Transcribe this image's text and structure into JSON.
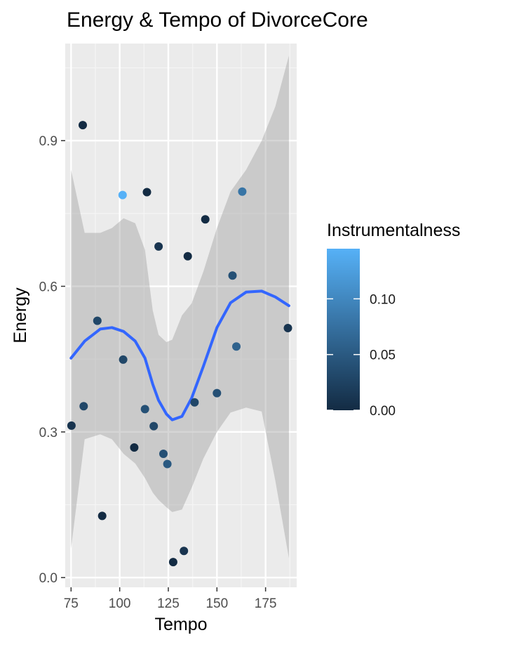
{
  "chart_data": {
    "type": "scatter",
    "title": "Energy & Tempo of DivorceCore",
    "xlabel": "Tempo",
    "ylabel": "Energy",
    "xlim": [
      72,
      191
    ],
    "ylim": [
      -0.02,
      1.1
    ],
    "x_ticks": [
      75,
      100,
      125,
      150,
      175
    ],
    "x_tick_labels": [
      "75",
      "100",
      "125",
      "150",
      "175"
    ],
    "y_ticks": [
      0.0,
      0.3,
      0.6,
      0.9
    ],
    "y_tick_labels": [
      "0.0",
      "0.3",
      "0.6",
      "0.9"
    ],
    "grid": true,
    "legend": {
      "title": "Instrumentalness",
      "placement": "right",
      "labels": [
        "0.10",
        "0.05",
        "0.00"
      ],
      "ticks": [
        0.1,
        0.05,
        0.0
      ],
      "range": [
        0.0,
        0.145
      ],
      "color_low": "#132B43",
      "color_high": "#56B1F7"
    },
    "points": [
      {
        "tempo": 75.2,
        "energy": 0.313,
        "instrumentalness": 0.01
      },
      {
        "tempo": 81.0,
        "energy": 0.932,
        "instrumentalness": 0.0
      },
      {
        "tempo": 81.5,
        "energy": 0.353,
        "instrumentalness": 0.03
      },
      {
        "tempo": 88.5,
        "energy": 0.529,
        "instrumentalness": 0.03
      },
      {
        "tempo": 91.0,
        "energy": 0.127,
        "instrumentalness": 0.0
      },
      {
        "tempo": 101.5,
        "energy": 0.788,
        "instrumentalness": 0.145
      },
      {
        "tempo": 101.8,
        "energy": 0.449,
        "instrumentalness": 0.03
      },
      {
        "tempo": 107.5,
        "energy": 0.268,
        "instrumentalness": 0.0
      },
      {
        "tempo": 113.0,
        "energy": 0.347,
        "instrumentalness": 0.04
      },
      {
        "tempo": 114.0,
        "energy": 0.794,
        "instrumentalness": 0.0
      },
      {
        "tempo": 117.5,
        "energy": 0.312,
        "instrumentalness": 0.03
      },
      {
        "tempo": 120.0,
        "energy": 0.682,
        "instrumentalness": 0.01
      },
      {
        "tempo": 122.5,
        "energy": 0.255,
        "instrumentalness": 0.04
      },
      {
        "tempo": 124.5,
        "energy": 0.234,
        "instrumentalness": 0.05
      },
      {
        "tempo": 127.5,
        "energy": 0.032,
        "instrumentalness": 0.0
      },
      {
        "tempo": 133.0,
        "energy": 0.055,
        "instrumentalness": 0.01
      },
      {
        "tempo": 135.0,
        "energy": 0.662,
        "instrumentalness": 0.0
      },
      {
        "tempo": 138.5,
        "energy": 0.361,
        "instrumentalness": 0.03
      },
      {
        "tempo": 144.0,
        "energy": 0.738,
        "instrumentalness": 0.0
      },
      {
        "tempo": 150.0,
        "energy": 0.38,
        "instrumentalness": 0.04
      },
      {
        "tempo": 158.0,
        "energy": 0.622,
        "instrumentalness": 0.04
      },
      {
        "tempo": 160.0,
        "energy": 0.476,
        "instrumentalness": 0.06
      },
      {
        "tempo": 163.0,
        "energy": 0.795,
        "instrumentalness": 0.08
      },
      {
        "tempo": 186.5,
        "energy": 0.514,
        "instrumentalness": 0.01
      }
    ],
    "smooth": {
      "color": "#3366FF",
      "band_color": "#999999",
      "x": [
        75,
        82,
        90,
        96,
        102,
        108,
        113,
        117,
        120,
        124,
        127,
        132,
        137,
        143,
        150,
        157,
        165,
        173,
        180,
        187
      ],
      "y": [
        0.452,
        0.487,
        0.512,
        0.515,
        0.507,
        0.487,
        0.452,
        0.398,
        0.365,
        0.337,
        0.325,
        0.332,
        0.37,
        0.435,
        0.515,
        0.566,
        0.588,
        0.59,
        0.578,
        0.56
      ],
      "lower": [
        0.06,
        0.285,
        0.295,
        0.285,
        0.255,
        0.235,
        0.205,
        0.175,
        0.16,
        0.145,
        0.135,
        0.14,
        0.185,
        0.245,
        0.3,
        0.34,
        0.35,
        0.342,
        0.2,
        0.04
      ],
      "upper": [
        0.84,
        0.71,
        0.71,
        0.72,
        0.74,
        0.73,
        0.675,
        0.55,
        0.5,
        0.485,
        0.49,
        0.54,
        0.565,
        0.63,
        0.72,
        0.795,
        0.84,
        0.9,
        0.97,
        1.075
      ]
    }
  }
}
